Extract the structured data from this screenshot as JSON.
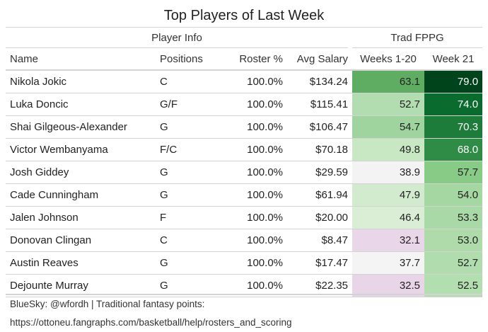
{
  "title": "Top Players of Last Week",
  "groups": {
    "player_info": "Player Info",
    "trad_fppg": "Trad FPPG"
  },
  "columns": {
    "name": "Name",
    "positions": "Positions",
    "roster": "Roster %",
    "salary": "Avg Salary",
    "weeks": "Weeks 1-20",
    "week21": "Week 21"
  },
  "rows": [
    {
      "name": "Nikola Jokic",
      "positions": "C",
      "roster": "100.0%",
      "salary": "$134.24",
      "weeks": "63.1",
      "week21": "79.0"
    },
    {
      "name": "Luka Doncic",
      "positions": "G/F",
      "roster": "100.0%",
      "salary": "$115.41",
      "weeks": "52.7",
      "week21": "74.0"
    },
    {
      "name": "Shai Gilgeous-Alexander",
      "positions": "G",
      "roster": "100.0%",
      "salary": "$106.47",
      "weeks": "54.7",
      "week21": "70.3"
    },
    {
      "name": "Victor Wembanyama",
      "positions": "F/C",
      "roster": "100.0%",
      "salary": "$70.18",
      "weeks": "49.8",
      "week21": "68.0"
    },
    {
      "name": "Josh Giddey",
      "positions": "G",
      "roster": "100.0%",
      "salary": "$29.59",
      "weeks": "38.9",
      "week21": "57.7"
    },
    {
      "name": "Cade Cunningham",
      "positions": "G",
      "roster": "100.0%",
      "salary": "$61.94",
      "weeks": "47.9",
      "week21": "54.0"
    },
    {
      "name": "Jalen Johnson",
      "positions": "F",
      "roster": "100.0%",
      "salary": "$20.00",
      "weeks": "46.4",
      "week21": "53.3"
    },
    {
      "name": "Donovan Clingan",
      "positions": "C",
      "roster": "100.0%",
      "salary": "$8.47",
      "weeks": "32.1",
      "week21": "53.0"
    },
    {
      "name": "Austin Reaves",
      "positions": "G",
      "roster": "100.0%",
      "salary": "$17.47",
      "weeks": "37.7",
      "week21": "52.7"
    },
    {
      "name": "Dejounte Murray",
      "positions": "G",
      "roster": "100.0%",
      "salary": "$22.35",
      "weeks": "32.5",
      "week21": "52.5"
    }
  ],
  "colors": {
    "weeks": [
      "#5fad62",
      "#b2ddb0",
      "#9fd49e",
      "#c8e8c4",
      "#f3f3f3",
      "#d2ebcf",
      "#daeed6",
      "#e9d7e9",
      "#f4f4f4",
      "#e8d6e8"
    ],
    "week21": [
      "#00441b",
      "#0a6b2f",
      "#1d7c3a",
      "#2f8c47",
      "#88cb86",
      "#a4d7a2",
      "#a9d9a6",
      "#aedba9",
      "#b1ddae",
      "#b3deaf"
    ],
    "week21_text": [
      "#ffffff",
      "#ffffff",
      "#ffffff",
      "#ffffff",
      "#222222",
      "#222222",
      "#222222",
      "#222222",
      "#222222",
      "#222222"
    ]
  },
  "footer": "BlueSky: @wfordh | Traditional fantasy points: https://ottoneu.fangraphs.com/basketball/help/rosters_and_scoring"
}
